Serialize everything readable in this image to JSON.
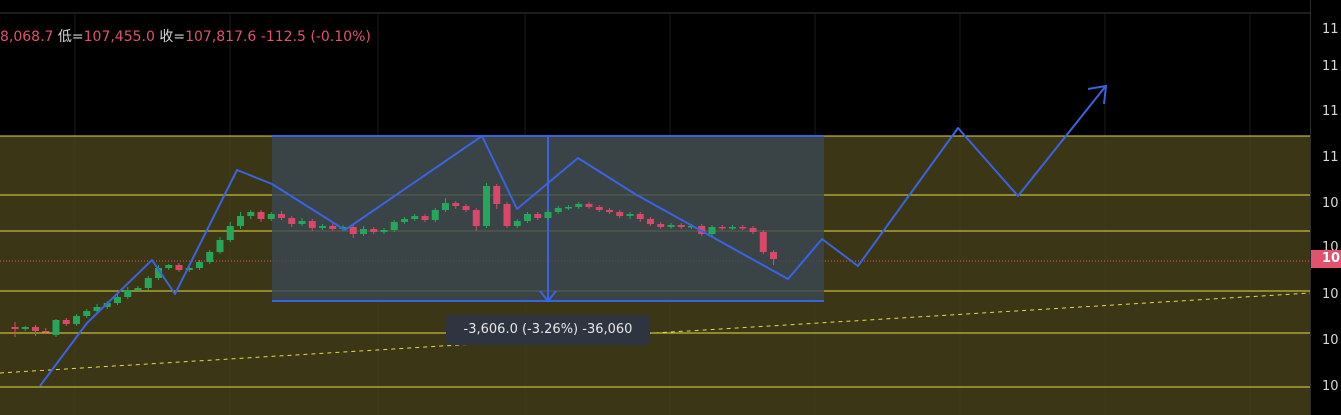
{
  "legend": {
    "high_value": "8,068.7",
    "low_label": "低=",
    "low_value": "107,455.0",
    "close_label": "收=",
    "close_value": "107,817.6",
    "change": "-112.5 (-0.10%)"
  },
  "axis_ticks": [
    "11",
    "11",
    "11",
    "11",
    "10",
    "10",
    "10",
    "10",
    "10",
    "10"
  ],
  "current_price_tag": "10",
  "measure_label": "-3,606.0 (-3.26%) -36,060",
  "colors": {
    "up": "#26a65b",
    "down": "#d9486a",
    "zone": "#45411a",
    "level_line": "#e6d84a",
    "drawing": "#3a63e0",
    "box": "#3b4550"
  },
  "chart_data": {
    "type": "candlestick",
    "y_unit": "price",
    "candles": [
      {
        "o": 88,
        "c": 86,
        "h": 93,
        "l": 78
      },
      {
        "o": 86,
        "c": 88,
        "h": 89,
        "l": 84
      },
      {
        "o": 88,
        "c": 84,
        "h": 90,
        "l": 79
      },
      {
        "o": 84,
        "c": 83,
        "h": 87,
        "l": 81
      },
      {
        "o": 80,
        "c": 95,
        "h": 96,
        "l": 78
      },
      {
        "o": 95,
        "c": 91,
        "h": 97,
        "l": 89
      },
      {
        "o": 91,
        "c": 99,
        "h": 101,
        "l": 89
      },
      {
        "o": 99,
        "c": 104,
        "h": 106,
        "l": 97
      },
      {
        "o": 104,
        "c": 108,
        "h": 111,
        "l": 103
      },
      {
        "o": 108,
        "c": 112,
        "h": 114,
        "l": 106
      },
      {
        "o": 112,
        "c": 118,
        "h": 121,
        "l": 110
      },
      {
        "o": 118,
        "c": 125,
        "h": 128,
        "l": 116
      },
      {
        "o": 125,
        "c": 127,
        "h": 129,
        "l": 123
      },
      {
        "o": 127,
        "c": 137,
        "h": 139,
        "l": 125
      },
      {
        "o": 137,
        "c": 147,
        "h": 150,
        "l": 135
      },
      {
        "o": 147,
        "c": 150,
        "h": 151,
        "l": 145
      },
      {
        "o": 150,
        "c": 145,
        "h": 152,
        "l": 143
      },
      {
        "o": 145,
        "c": 147,
        "h": 149,
        "l": 143
      },
      {
        "o": 147,
        "c": 153,
        "h": 155,
        "l": 145
      },
      {
        "o": 153,
        "c": 163,
        "h": 165,
        "l": 151
      },
      {
        "o": 163,
        "c": 175,
        "h": 178,
        "l": 161
      },
      {
        "o": 175,
        "c": 189,
        "h": 193,
        "l": 173
      },
      {
        "o": 189,
        "c": 199,
        "h": 203,
        "l": 186
      },
      {
        "o": 199,
        "c": 203,
        "h": 205,
        "l": 196
      },
      {
        "o": 203,
        "c": 196,
        "h": 205,
        "l": 193
      },
      {
        "o": 196,
        "c": 201,
        "h": 203,
        "l": 194
      },
      {
        "o": 201,
        "c": 197,
        "h": 204,
        "l": 195
      },
      {
        "o": 197,
        "c": 191,
        "h": 199,
        "l": 188
      },
      {
        "o": 191,
        "c": 194,
        "h": 197,
        "l": 189
      },
      {
        "o": 194,
        "c": 187,
        "h": 196,
        "l": 184
      },
      {
        "o": 187,
        "c": 189,
        "h": 191,
        "l": 185
      },
      {
        "o": 189,
        "c": 186,
        "h": 192,
        "l": 184
      },
      {
        "o": 186,
        "c": 188,
        "h": 190,
        "l": 184
      },
      {
        "o": 188,
        "c": 181,
        "h": 190,
        "l": 177
      },
      {
        "o": 181,
        "c": 186,
        "h": 189,
        "l": 179
      },
      {
        "o": 186,
        "c": 183,
        "h": 188,
        "l": 181
      },
      {
        "o": 183,
        "c": 185,
        "h": 187,
        "l": 181
      },
      {
        "o": 185,
        "c": 193,
        "h": 195,
        "l": 183
      },
      {
        "o": 193,
        "c": 196,
        "h": 198,
        "l": 191
      },
      {
        "o": 196,
        "c": 199,
        "h": 201,
        "l": 194
      },
      {
        "o": 199,
        "c": 195,
        "h": 201,
        "l": 193
      },
      {
        "o": 195,
        "c": 205,
        "h": 207,
        "l": 193
      },
      {
        "o": 205,
        "c": 212,
        "h": 217,
        "l": 203
      },
      {
        "o": 212,
        "c": 209,
        "h": 214,
        "l": 206
      },
      {
        "o": 209,
        "c": 205,
        "h": 211,
        "l": 203
      },
      {
        "o": 205,
        "c": 189,
        "h": 207,
        "l": 184
      },
      {
        "o": 189,
        "c": 229,
        "h": 232,
        "l": 187
      },
      {
        "o": 229,
        "c": 211,
        "h": 231,
        "l": 206
      },
      {
        "o": 211,
        "c": 189,
        "h": 213,
        "l": 187
      },
      {
        "o": 189,
        "c": 194,
        "h": 196,
        "l": 187
      },
      {
        "o": 194,
        "c": 201,
        "h": 203,
        "l": 192
      },
      {
        "o": 201,
        "c": 197,
        "h": 203,
        "l": 195
      },
      {
        "o": 197,
        "c": 203,
        "h": 205,
        "l": 195
      },
      {
        "o": 203,
        "c": 207,
        "h": 209,
        "l": 201
      },
      {
        "o": 207,
        "c": 208,
        "h": 210,
        "l": 205
      },
      {
        "o": 208,
        "c": 211,
        "h": 213,
        "l": 206
      },
      {
        "o": 211,
        "c": 208,
        "h": 213,
        "l": 206
      },
      {
        "o": 208,
        "c": 205,
        "h": 210,
        "l": 203
      },
      {
        "o": 205,
        "c": 203,
        "h": 207,
        "l": 201
      },
      {
        "o": 203,
        "c": 199,
        "h": 205,
        "l": 197
      },
      {
        "o": 199,
        "c": 201,
        "h": 203,
        "l": 196
      },
      {
        "o": 201,
        "c": 196,
        "h": 203,
        "l": 193
      },
      {
        "o": 196,
        "c": 191,
        "h": 198,
        "l": 189
      },
      {
        "o": 191,
        "c": 188,
        "h": 193,
        "l": 186
      },
      {
        "o": 188,
        "c": 190,
        "h": 192,
        "l": 186
      },
      {
        "o": 190,
        "c": 188,
        "h": 192,
        "l": 186
      },
      {
        "o": 188,
        "c": 189,
        "h": 191,
        "l": 186
      },
      {
        "o": 189,
        "c": 181,
        "h": 191,
        "l": 179
      },
      {
        "o": 181,
        "c": 188,
        "h": 190,
        "l": 179
      },
      {
        "o": 188,
        "c": 187,
        "h": 190,
        "l": 185
      },
      {
        "o": 187,
        "c": 188,
        "h": 190,
        "l": 185
      },
      {
        "o": 188,
        "c": 187,
        "h": 190,
        "l": 185
      },
      {
        "o": 187,
        "c": 183,
        "h": 189,
        "l": 181
      },
      {
        "o": 183,
        "c": 163,
        "h": 185,
        "l": 161
      },
      {
        "o": 163,
        "c": 156,
        "h": 165,
        "l": 150
      }
    ]
  }
}
